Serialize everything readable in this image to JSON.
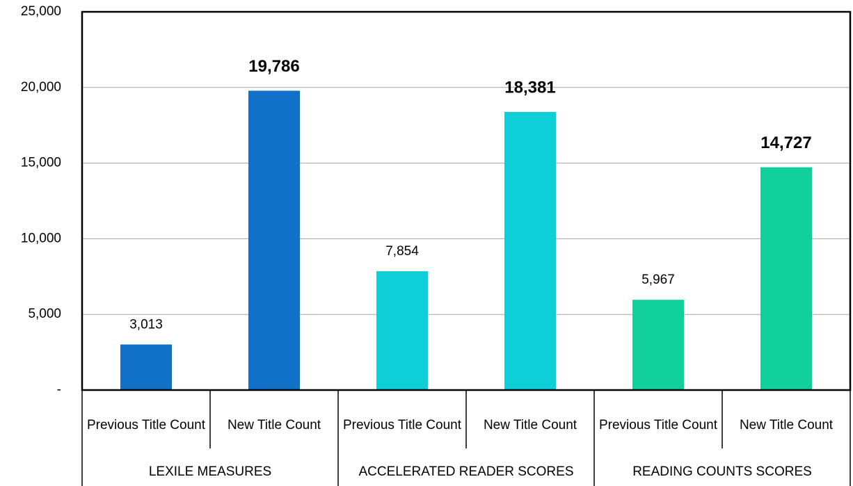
{
  "chart_data": {
    "type": "bar",
    "groups": [
      {
        "name": "LEXILE MEASURES",
        "categories": [
          "Previous Title Count",
          "New Title Count"
        ],
        "values": [
          3013,
          19786
        ],
        "value_labels": [
          "3,013",
          "19,786"
        ],
        "color": "#1170c8"
      },
      {
        "name": "ACCELERATED READER SCORES",
        "categories": [
          "Previous Title Count",
          "New Title Count"
        ],
        "values": [
          7854,
          18381
        ],
        "value_labels": [
          "7,854",
          "18,381"
        ],
        "color": "#0ecfd8"
      },
      {
        "name": "READING COUNTS SCORES",
        "categories": [
          "Previous Title Count",
          "New Title Count"
        ],
        "values": [
          5967,
          14727
        ],
        "value_labels": [
          "5,967",
          "14,727"
        ],
        "color": "#12d09a"
      }
    ],
    "ylim": [
      0,
      25000
    ],
    "yticks": [
      {
        "value": 0,
        "label": "-"
      },
      {
        "value": 5000,
        "label": "5,000"
      },
      {
        "value": 10000,
        "label": "10,000"
      },
      {
        "value": 15000,
        "label": "15,000"
      },
      {
        "value": 20000,
        "label": "20,000"
      },
      {
        "value": 25000,
        "label": "25,000"
      }
    ],
    "grid": true
  }
}
